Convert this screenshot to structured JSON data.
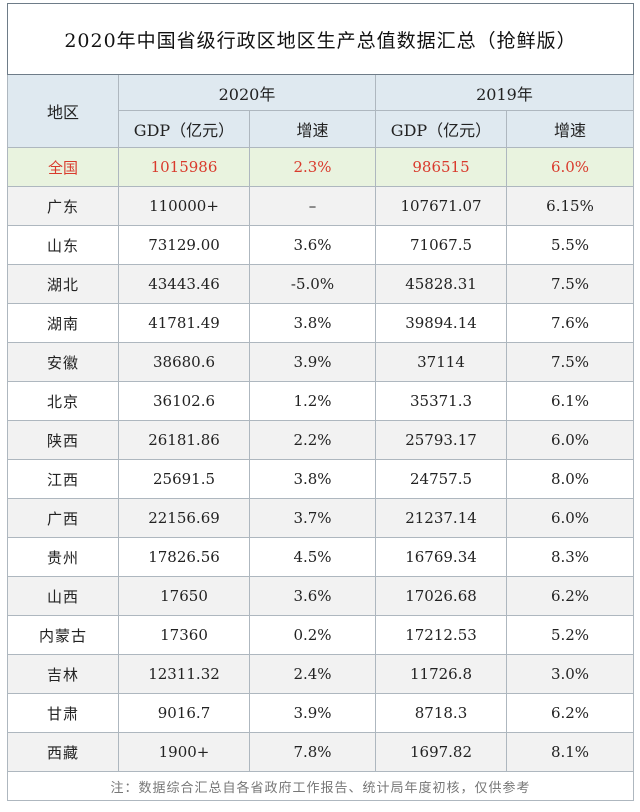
{
  "title": "2020年中国省级行政区地区生产总值数据汇总（抢鲜版）",
  "headers": {
    "region": "地区",
    "year_2020": "2020年",
    "year_2019": "2019年",
    "gdp": "GDP（亿元）",
    "growth": "增速"
  },
  "national": {
    "region": "全国",
    "gdp2020": "1015986",
    "growth2020": "2.3%",
    "gdp2019": "986515",
    "growth2019": "6.0%"
  },
  "rows": [
    {
      "region": "广东",
      "gdp2020": "110000+",
      "growth2020": "–",
      "gdp2019": "107671.07",
      "growth2019": "6.15%"
    },
    {
      "region": "山东",
      "gdp2020": "73129.00",
      "growth2020": "3.6%",
      "gdp2019": "71067.5",
      "growth2019": "5.5%"
    },
    {
      "region": "湖北",
      "gdp2020": "43443.46",
      "growth2020": "-5.0%",
      "gdp2019": "45828.31",
      "growth2019": "7.5%"
    },
    {
      "region": "湖南",
      "gdp2020": "41781.49",
      "growth2020": "3.8%",
      "gdp2019": "39894.14",
      "growth2019": "7.6%"
    },
    {
      "region": "安徽",
      "gdp2020": "38680.6",
      "growth2020": "3.9%",
      "gdp2019": "37114",
      "growth2019": "7.5%"
    },
    {
      "region": "北京",
      "gdp2020": "36102.6",
      "growth2020": "1.2%",
      "gdp2019": "35371.3",
      "growth2019": "6.1%"
    },
    {
      "region": "陕西",
      "gdp2020": "26181.86",
      "growth2020": "2.2%",
      "gdp2019": "25793.17",
      "growth2019": "6.0%"
    },
    {
      "region": "江西",
      "gdp2020": "25691.5",
      "growth2020": "3.8%",
      "gdp2019": "24757.5",
      "growth2019": "8.0%"
    },
    {
      "region": "广西",
      "gdp2020": "22156.69",
      "growth2020": "3.7%",
      "gdp2019": "21237.14",
      "growth2019": "6.0%"
    },
    {
      "region": "贵州",
      "gdp2020": "17826.56",
      "growth2020": "4.5%",
      "gdp2019": "16769.34",
      "growth2019": "8.3%"
    },
    {
      "region": "山西",
      "gdp2020": "17650",
      "growth2020": "3.6%",
      "gdp2019": "17026.68",
      "growth2019": "6.2%"
    },
    {
      "region": "内蒙古",
      "gdp2020": "17360",
      "growth2020": "0.2%",
      "gdp2019": "17212.53",
      "growth2019": "5.2%"
    },
    {
      "region": "吉林",
      "gdp2020": "12311.32",
      "growth2020": "2.4%",
      "gdp2019": "11726.8",
      "growth2019": "3.0%"
    },
    {
      "region": "甘肃",
      "gdp2020": "9016.7",
      "growth2020": "3.9%",
      "gdp2019": "8718.3",
      "growth2019": "6.2%"
    },
    {
      "region": "西藏",
      "gdp2020": "1900+",
      "growth2020": "7.8%",
      "gdp2019": "1697.82",
      "growth2019": "8.1%"
    }
  ],
  "note": "注：数据综合汇总自各省政府工作报告、统计局年度初核，仅供参考"
}
